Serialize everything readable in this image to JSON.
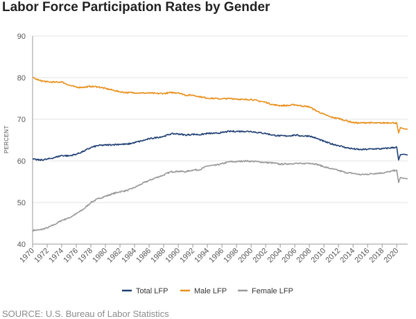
{
  "page": {
    "title": "Labor Force Participation Rates by Gender",
    "source": "SOURCE: U.S. Bureau of Labor Statistics"
  },
  "chart_data": {
    "type": "line",
    "title": "Labor Force Participation Rates by Gender",
    "xlabel": "",
    "ylabel": "PERCENT",
    "xlim": [
      1970,
      2021.5
    ],
    "ylim": [
      40,
      90
    ],
    "yticks": [
      40,
      50,
      60,
      70,
      80,
      90
    ],
    "xticks": [
      1970,
      1972,
      1974,
      1976,
      1978,
      1980,
      1982,
      1984,
      1986,
      1988,
      1990,
      1992,
      1994,
      1996,
      1998,
      2000,
      2002,
      2004,
      2006,
      2008,
      2010,
      2012,
      2014,
      2016,
      2018,
      2020
    ],
    "grid": "horizontal",
    "legend_position": "bottom",
    "series": [
      {
        "name": "Total LFP",
        "color": "#1f3f73",
        "x": [
          1970,
          1971,
          1972,
          1973,
          1974,
          1975,
          1976,
          1977,
          1978,
          1979,
          1980,
          1981,
          1982,
          1983,
          1984,
          1985,
          1986,
          1987,
          1988,
          1989,
          1990,
          1991,
          1992,
          1993,
          1994,
          1995,
          1996,
          1997,
          1998,
          1999,
          2000,
          2001,
          2002,
          2003,
          2004,
          2005,
          2006,
          2007,
          2008,
          2009,
          2010,
          2011,
          2012,
          2013,
          2014,
          2015,
          2016,
          2017,
          2018,
          2019,
          2020.0,
          2020.25,
          2020.5,
          2021,
          2021.5
        ],
        "values": [
          60.4,
          60.2,
          60.4,
          60.8,
          61.3,
          61.2,
          61.6,
          62.3,
          63.2,
          63.7,
          63.8,
          63.9,
          64.0,
          64.0,
          64.4,
          64.8,
          65.3,
          65.6,
          65.9,
          66.5,
          66.5,
          66.2,
          66.4,
          66.3,
          66.6,
          66.6,
          66.8,
          67.1,
          67.1,
          67.1,
          67.1,
          66.8,
          66.6,
          66.2,
          66.0,
          66.0,
          66.2,
          66.0,
          66.0,
          65.4,
          64.7,
          64.1,
          63.7,
          63.2,
          62.9,
          62.7,
          62.8,
          62.9,
          62.9,
          63.1,
          63.3,
          60.2,
          61.5,
          61.6,
          61.4
        ]
      },
      {
        "name": "Male LFP",
        "color": "#e8901c",
        "x": [
          1970,
          1971,
          1972,
          1973,
          1974,
          1975,
          1976,
          1977,
          1978,
          1979,
          1980,
          1981,
          1982,
          1983,
          1984,
          1985,
          1986,
          1987,
          1988,
          1989,
          1990,
          1991,
          1992,
          1993,
          1994,
          1995,
          1996,
          1997,
          1998,
          1999,
          2000,
          2001,
          2002,
          2003,
          2004,
          2005,
          2006,
          2007,
          2008,
          2009,
          2010,
          2011,
          2012,
          2013,
          2014,
          2015,
          2016,
          2017,
          2018,
          2019,
          2020.0,
          2020.25,
          2020.5,
          2021,
          2021.5
        ],
        "values": [
          80.0,
          79.3,
          79.0,
          78.9,
          79.0,
          78.2,
          77.7,
          77.7,
          77.9,
          77.8,
          77.4,
          77.0,
          76.6,
          76.4,
          76.4,
          76.3,
          76.3,
          76.2,
          76.2,
          76.4,
          76.4,
          75.8,
          75.8,
          75.4,
          75.1,
          75.0,
          74.9,
          75.0,
          74.9,
          74.7,
          74.8,
          74.4,
          74.1,
          73.5,
          73.3,
          73.3,
          73.5,
          73.2,
          73.0,
          72.0,
          71.2,
          70.5,
          70.2,
          69.7,
          69.2,
          69.1,
          69.2,
          69.1,
          69.1,
          69.2,
          69.1,
          66.7,
          68.0,
          67.7,
          67.6
        ]
      },
      {
        "name": "Female LFP",
        "color": "#999999",
        "x": [
          1970,
          1971,
          1972,
          1973,
          1974,
          1975,
          1976,
          1977,
          1978,
          1979,
          1980,
          1981,
          1982,
          1983,
          1984,
          1985,
          1986,
          1987,
          1988,
          1989,
          1990,
          1991,
          1992,
          1993,
          1994,
          1995,
          1996,
          1997,
          1998,
          1999,
          2000,
          2001,
          2002,
          2003,
          2004,
          2005,
          2006,
          2007,
          2008,
          2009,
          2010,
          2011,
          2012,
          2013,
          2014,
          2015,
          2016,
          2017,
          2018,
          2019,
          2020.0,
          2020.25,
          2020.5,
          2021,
          2021.5
        ],
        "values": [
          43.3,
          43.4,
          43.9,
          44.7,
          45.7,
          46.3,
          47.3,
          48.4,
          50.0,
          50.9,
          51.5,
          52.1,
          52.6,
          52.9,
          53.6,
          54.5,
          55.3,
          56.0,
          56.6,
          57.4,
          57.5,
          57.4,
          57.8,
          57.9,
          58.8,
          58.9,
          59.3,
          59.8,
          59.8,
          60.0,
          59.9,
          59.8,
          59.6,
          59.5,
          59.2,
          59.3,
          59.4,
          59.3,
          59.5,
          59.2,
          58.6,
          58.1,
          57.7,
          57.2,
          57.0,
          56.7,
          56.8,
          57.0,
          57.1,
          57.4,
          57.8,
          54.8,
          56.0,
          55.8,
          55.7
        ]
      }
    ]
  }
}
